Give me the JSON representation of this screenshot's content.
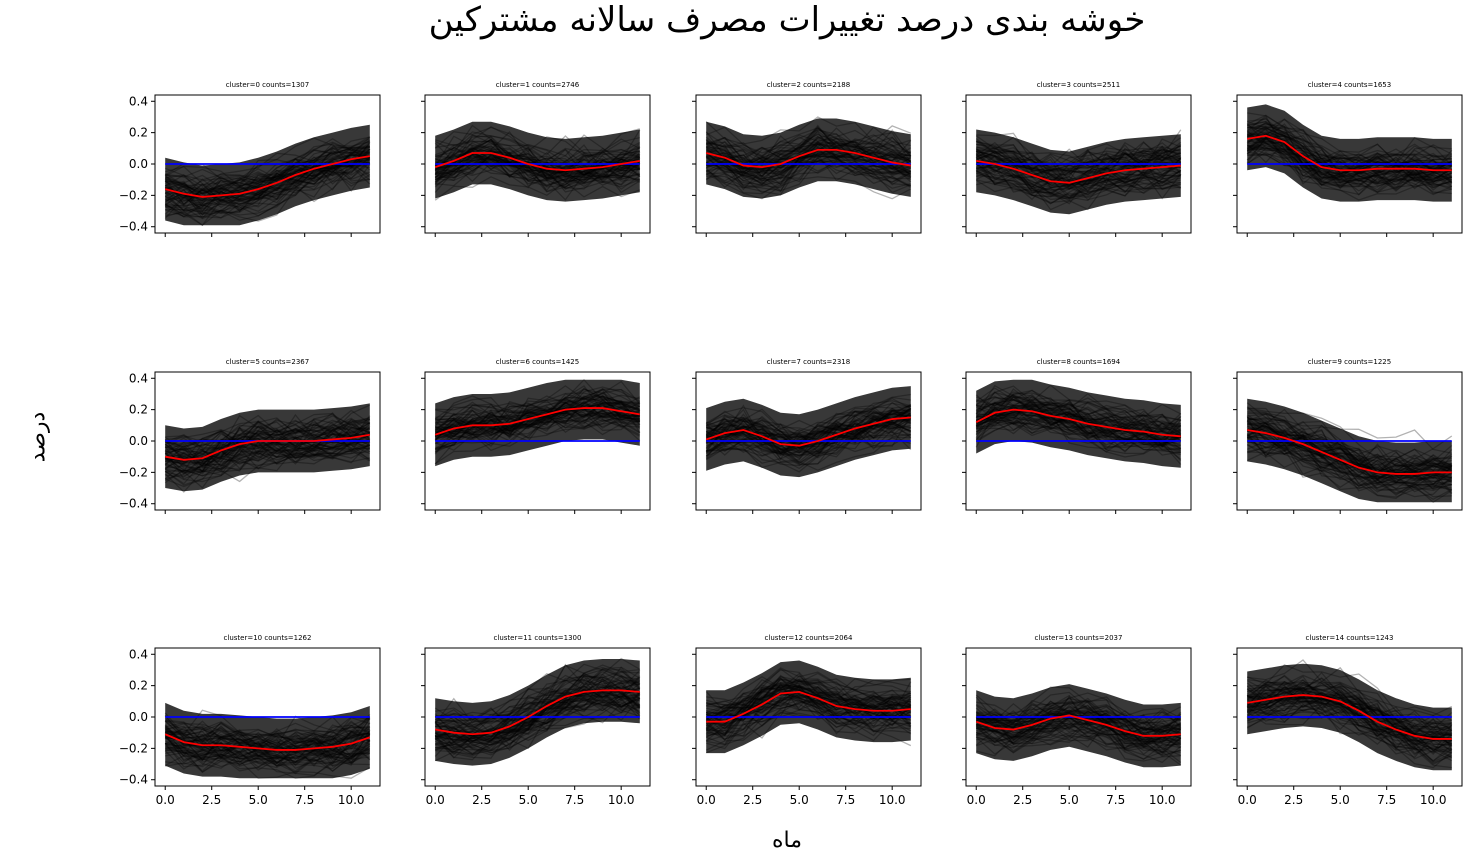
{
  "figure": {
    "title": "خوشه بندی درصد تغییرات مصرف سالانه مشترکین",
    "xlabel": "ماه",
    "ylabel": "درصد"
  },
  "colors": {
    "mean": "#ff0000",
    "zero": "#0000ff",
    "traces": "#000000"
  },
  "chart_data": [
    {
      "type": "line",
      "title": "cluster=0 counts=1307",
      "x": [
        0,
        1,
        2,
        3,
        4,
        5,
        6,
        7,
        8,
        9,
        10,
        11
      ],
      "series": [
        {
          "values": [
            -0.16,
            -0.19,
            -0.21,
            -0.2,
            -0.19,
            -0.16,
            -0.12,
            -0.07,
            -0.03,
            0.0,
            0.03,
            0.05
          ]
        },
        {
          "values": [
            0,
            0,
            0,
            0,
            0,
            0,
            0,
            0,
            0,
            0,
            0,
            0
          ]
        }
      ],
      "xlim": [
        -0.55,
        11.55
      ],
      "ylim": [
        -0.44,
        0.44
      ],
      "grid": false
    },
    {
      "type": "line",
      "title": "cluster=1 counts=2746",
      "x": [
        0,
        1,
        2,
        3,
        4,
        5,
        6,
        7,
        8,
        9,
        10,
        11
      ],
      "series": [
        {
          "values": [
            -0.02,
            0.02,
            0.07,
            0.07,
            0.04,
            0.0,
            -0.03,
            -0.04,
            -0.03,
            -0.02,
            0.0,
            0.02
          ]
        },
        {
          "values": [
            0,
            0,
            0,
            0,
            0,
            0,
            0,
            0,
            0,
            0,
            0,
            0
          ]
        }
      ],
      "xlim": [
        -0.55,
        11.55
      ],
      "ylim": [
        -0.44,
        0.44
      ],
      "grid": false
    },
    {
      "type": "line",
      "title": "cluster=2 counts=2188",
      "x": [
        0,
        1,
        2,
        3,
        4,
        5,
        6,
        7,
        8,
        9,
        10,
        11
      ],
      "series": [
        {
          "values": [
            0.07,
            0.04,
            -0.01,
            -0.02,
            0.0,
            0.05,
            0.09,
            0.09,
            0.07,
            0.04,
            0.01,
            -0.01
          ]
        },
        {
          "values": [
            0,
            0,
            0,
            0,
            0,
            0,
            0,
            0,
            0,
            0,
            0,
            0
          ]
        }
      ],
      "xlim": [
        -0.55,
        11.55
      ],
      "ylim": [
        -0.44,
        0.44
      ],
      "grid": false
    },
    {
      "type": "line",
      "title": "cluster=3 counts=2511",
      "x": [
        0,
        1,
        2,
        3,
        4,
        5,
        6,
        7,
        8,
        9,
        10,
        11
      ],
      "series": [
        {
          "values": [
            0.02,
            0.0,
            -0.03,
            -0.07,
            -0.11,
            -0.12,
            -0.09,
            -0.06,
            -0.04,
            -0.03,
            -0.02,
            -0.01
          ]
        },
        {
          "values": [
            0,
            0,
            0,
            0,
            0,
            0,
            0,
            0,
            0,
            0,
            0,
            0
          ]
        }
      ],
      "xlim": [
        -0.55,
        11.55
      ],
      "ylim": [
        -0.44,
        0.44
      ],
      "grid": false
    },
    {
      "type": "line",
      "title": "cluster=4 counts=1653",
      "x": [
        0,
        1,
        2,
        3,
        4,
        5,
        6,
        7,
        8,
        9,
        10,
        11
      ],
      "series": [
        {
          "values": [
            0.16,
            0.18,
            0.14,
            0.05,
            -0.02,
            -0.04,
            -0.04,
            -0.03,
            -0.03,
            -0.03,
            -0.04,
            -0.04
          ]
        },
        {
          "values": [
            0,
            0,
            0,
            0,
            0,
            0,
            0,
            0,
            0,
            0,
            0,
            0
          ]
        }
      ],
      "xlim": [
        -0.55,
        11.55
      ],
      "ylim": [
        -0.44,
        0.44
      ],
      "grid": false
    },
    {
      "type": "line",
      "title": "cluster=5 counts=2367",
      "x": [
        0,
        1,
        2,
        3,
        4,
        5,
        6,
        7,
        8,
        9,
        10,
        11
      ],
      "series": [
        {
          "values": [
            -0.1,
            -0.12,
            -0.11,
            -0.06,
            -0.02,
            0.0,
            0.0,
            0.0,
            0.0,
            0.01,
            0.02,
            0.04
          ]
        },
        {
          "values": [
            0,
            0,
            0,
            0,
            0,
            0,
            0,
            0,
            0,
            0,
            0,
            0
          ]
        }
      ],
      "xlim": [
        -0.55,
        11.55
      ],
      "ylim": [
        -0.44,
        0.44
      ],
      "grid": false
    },
    {
      "type": "line",
      "title": "cluster=6 counts=1425",
      "x": [
        0,
        1,
        2,
        3,
        4,
        5,
        6,
        7,
        8,
        9,
        10,
        11
      ],
      "series": [
        {
          "values": [
            0.04,
            0.08,
            0.1,
            0.1,
            0.11,
            0.14,
            0.17,
            0.2,
            0.21,
            0.21,
            0.19,
            0.17
          ]
        },
        {
          "values": [
            0,
            0,
            0,
            0,
            0,
            0,
            0,
            0,
            0,
            0,
            0,
            0
          ]
        }
      ],
      "xlim": [
        -0.55,
        11.55
      ],
      "ylim": [
        -0.44,
        0.44
      ],
      "grid": false
    },
    {
      "type": "line",
      "title": "cluster=7 counts=2318",
      "x": [
        0,
        1,
        2,
        3,
        4,
        5,
        6,
        7,
        8,
        9,
        10,
        11
      ],
      "series": [
        {
          "values": [
            0.01,
            0.05,
            0.07,
            0.03,
            -0.02,
            -0.03,
            0.0,
            0.04,
            0.08,
            0.11,
            0.14,
            0.15
          ]
        },
        {
          "values": [
            0,
            0,
            0,
            0,
            0,
            0,
            0,
            0,
            0,
            0,
            0,
            0
          ]
        }
      ],
      "xlim": [
        -0.55,
        11.55
      ],
      "ylim": [
        -0.44,
        0.44
      ],
      "grid": false
    },
    {
      "type": "line",
      "title": "cluster=8 counts=1694",
      "x": [
        0,
        1,
        2,
        3,
        4,
        5,
        6,
        7,
        8,
        9,
        10,
        11
      ],
      "series": [
        {
          "values": [
            0.12,
            0.18,
            0.2,
            0.19,
            0.16,
            0.14,
            0.11,
            0.09,
            0.07,
            0.06,
            0.04,
            0.03
          ]
        },
        {
          "values": [
            0,
            0,
            0,
            0,
            0,
            0,
            0,
            0,
            0,
            0,
            0,
            0
          ]
        }
      ],
      "xlim": [
        -0.55,
        11.55
      ],
      "ylim": [
        -0.44,
        0.44
      ],
      "grid": false
    },
    {
      "type": "line",
      "title": "cluster=9 counts=1225",
      "x": [
        0,
        1,
        2,
        3,
        4,
        5,
        6,
        7,
        8,
        9,
        10,
        11
      ],
      "series": [
        {
          "values": [
            0.07,
            0.05,
            0.02,
            -0.02,
            -0.07,
            -0.12,
            -0.17,
            -0.2,
            -0.21,
            -0.21,
            -0.2,
            -0.2
          ]
        },
        {
          "values": [
            0,
            0,
            0,
            0,
            0,
            0,
            0,
            0,
            0,
            0,
            0,
            0
          ]
        }
      ],
      "xlim": [
        -0.55,
        11.55
      ],
      "ylim": [
        -0.44,
        0.44
      ],
      "grid": false
    },
    {
      "type": "line",
      "title": "cluster=10 counts=1262",
      "x": [
        0,
        1,
        2,
        3,
        4,
        5,
        6,
        7,
        8,
        9,
        10,
        11
      ],
      "series": [
        {
          "values": [
            -0.11,
            -0.16,
            -0.18,
            -0.18,
            -0.19,
            -0.2,
            -0.21,
            -0.21,
            -0.2,
            -0.19,
            -0.17,
            -0.13
          ]
        },
        {
          "values": [
            0,
            0,
            0,
            0,
            0,
            0,
            0,
            0,
            0,
            0,
            0,
            0
          ]
        }
      ],
      "xlim": [
        -0.55,
        11.55
      ],
      "ylim": [
        -0.44,
        0.44
      ],
      "grid": false
    },
    {
      "type": "line",
      "title": "cluster=11 counts=1300",
      "x": [
        0,
        1,
        2,
        3,
        4,
        5,
        6,
        7,
        8,
        9,
        10,
        11
      ],
      "series": [
        {
          "values": [
            -0.08,
            -0.1,
            -0.11,
            -0.1,
            -0.06,
            0.0,
            0.07,
            0.13,
            0.16,
            0.17,
            0.17,
            0.16
          ]
        },
        {
          "values": [
            0,
            0,
            0,
            0,
            0,
            0,
            0,
            0,
            0,
            0,
            0,
            0
          ]
        }
      ],
      "xlim": [
        -0.55,
        11.55
      ],
      "ylim": [
        -0.44,
        0.44
      ],
      "grid": false
    },
    {
      "type": "line",
      "title": "cluster=12 counts=2064",
      "x": [
        0,
        1,
        2,
        3,
        4,
        5,
        6,
        7,
        8,
        9,
        10,
        11
      ],
      "series": [
        {
          "values": [
            -0.03,
            -0.03,
            0.02,
            0.08,
            0.15,
            0.16,
            0.12,
            0.07,
            0.05,
            0.04,
            0.04,
            0.05
          ]
        },
        {
          "values": [
            0,
            0,
            0,
            0,
            0,
            0,
            0,
            0,
            0,
            0,
            0,
            0
          ]
        }
      ],
      "xlim": [
        -0.55,
        11.55
      ],
      "ylim": [
        -0.44,
        0.44
      ],
      "grid": false
    },
    {
      "type": "line",
      "title": "cluster=13 counts=2037",
      "x": [
        0,
        1,
        2,
        3,
        4,
        5,
        6,
        7,
        8,
        9,
        10,
        11
      ],
      "series": [
        {
          "values": [
            -0.03,
            -0.07,
            -0.08,
            -0.05,
            -0.01,
            0.01,
            -0.02,
            -0.05,
            -0.09,
            -0.12,
            -0.12,
            -0.11
          ]
        },
        {
          "values": [
            0,
            0,
            0,
            0,
            0,
            0,
            0,
            0,
            0,
            0,
            0,
            0
          ]
        }
      ],
      "xlim": [
        -0.55,
        11.55
      ],
      "ylim": [
        -0.44,
        0.44
      ],
      "grid": false
    },
    {
      "type": "line",
      "title": "cluster=14 counts=1243",
      "x": [
        0,
        1,
        2,
        3,
        4,
        5,
        6,
        7,
        8,
        9,
        10,
        11
      ],
      "series": [
        {
          "values": [
            0.09,
            0.11,
            0.13,
            0.14,
            0.13,
            0.1,
            0.04,
            -0.03,
            -0.08,
            -0.12,
            -0.14,
            -0.14
          ]
        },
        {
          "values": [
            0,
            0,
            0,
            0,
            0,
            0,
            0,
            0,
            0,
            0,
            0,
            0
          ]
        }
      ],
      "xlim": [
        -0.55,
        11.55
      ],
      "ylim": [
        -0.44,
        0.44
      ],
      "grid": false
    }
  ],
  "axes": {
    "ytick_labels": [
      "0.4",
      "0.2",
      "0.0",
      "−0.2",
      "−0.4"
    ],
    "ytick_values": [
      0.4,
      0.2,
      0.0,
      -0.2,
      -0.4
    ],
    "xtick_labels": [
      "0.0",
      "2.5",
      "5.0",
      "7.5",
      "10.0"
    ],
    "xtick_values": [
      0,
      2.5,
      5,
      7.5,
      10
    ]
  }
}
